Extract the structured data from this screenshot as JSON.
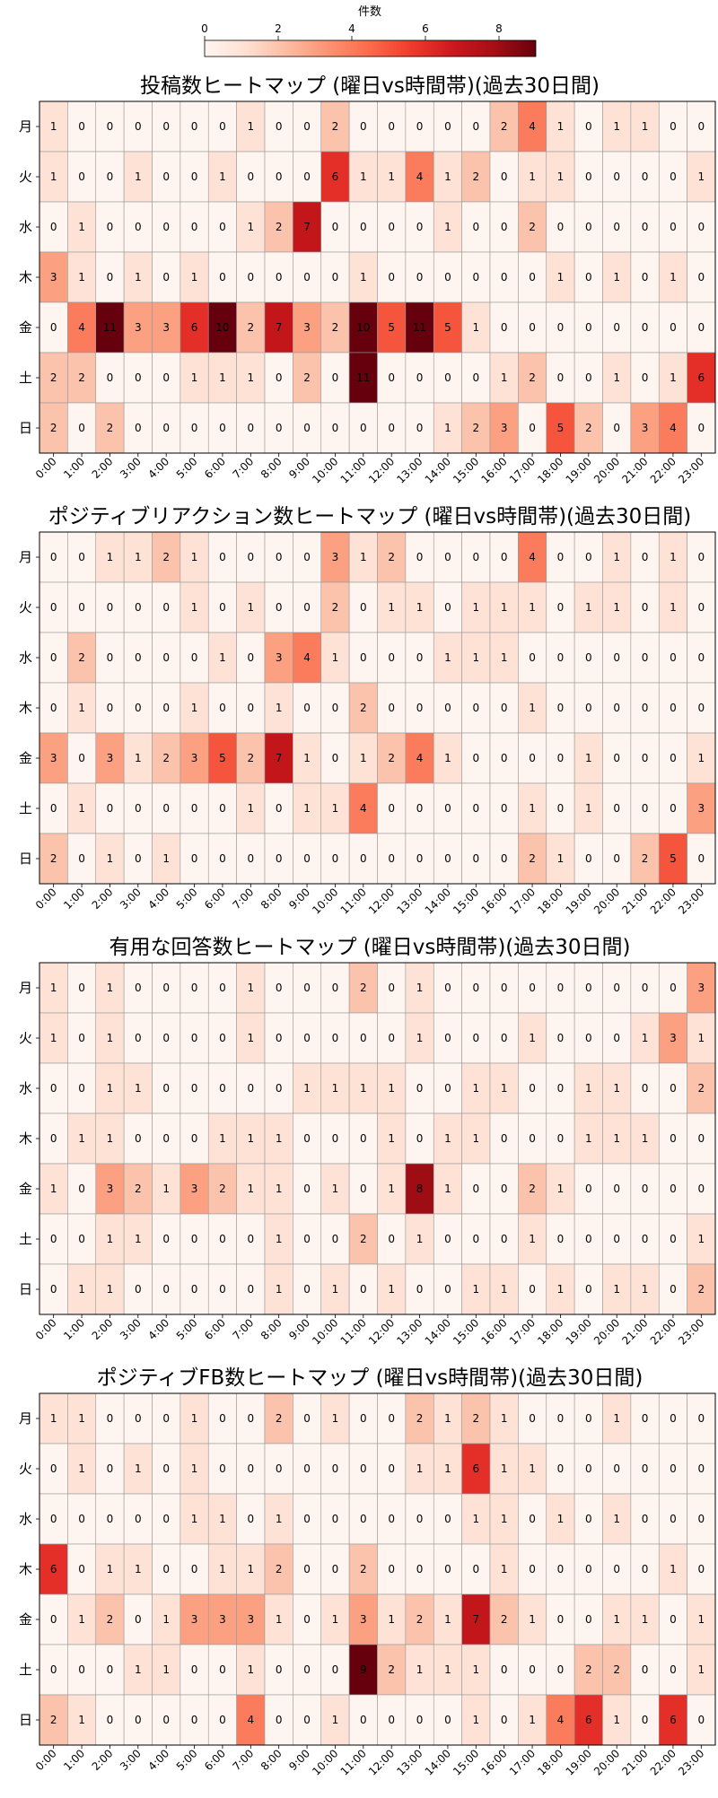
{
  "colorbar": {
    "label": "件数",
    "ticks": [
      0,
      2,
      4,
      6,
      8
    ],
    "range": [
      0,
      9
    ],
    "colormap": "Reds",
    "orientation": "horizontal",
    "placement": "top"
  },
  "chart_data": [
    {
      "type": "heatmap",
      "title": "投稿数ヒートマップ (曜日vs時間帯)(過去30日間)",
      "rows": [
        "月",
        "火",
        "水",
        "木",
        "金",
        "土",
        "日"
      ],
      "columns": [
        "0:00",
        "1:00",
        "2:00",
        "3:00",
        "4:00",
        "5:00",
        "6:00",
        "7:00",
        "8:00",
        "9:00",
        "10:00",
        "11:00",
        "12:00",
        "13:00",
        "14:00",
        "15:00",
        "16:00",
        "17:00",
        "18:00",
        "19:00",
        "20:00",
        "21:00",
        "22:00",
        "23:00"
      ],
      "values": [
        [
          1,
          0,
          0,
          0,
          0,
          0,
          0,
          1,
          0,
          0,
          2,
          0,
          0,
          0,
          0,
          0,
          2,
          4,
          1,
          0,
          1,
          1,
          0,
          0
        ],
        [
          1,
          0,
          0,
          1,
          0,
          0,
          1,
          0,
          0,
          0,
          6,
          1,
          1,
          4,
          1,
          2,
          0,
          1,
          1,
          0,
          0,
          0,
          0,
          1
        ],
        [
          0,
          1,
          0,
          0,
          0,
          0,
          0,
          1,
          2,
          7,
          0,
          0,
          0,
          0,
          1,
          0,
          0,
          2,
          0,
          0,
          0,
          0,
          0,
          0
        ],
        [
          3,
          1,
          0,
          1,
          0,
          1,
          0,
          0,
          0,
          0,
          0,
          1,
          0,
          0,
          0,
          0,
          0,
          0,
          1,
          0,
          1,
          0,
          1,
          0
        ],
        [
          0,
          4,
          11,
          3,
          3,
          6,
          10,
          2,
          7,
          3,
          2,
          10,
          5,
          11,
          5,
          1,
          0,
          0,
          0,
          0,
          0,
          0,
          0,
          0
        ],
        [
          2,
          2,
          0,
          0,
          0,
          1,
          1,
          1,
          0,
          2,
          0,
          11,
          0,
          0,
          0,
          0,
          1,
          2,
          0,
          0,
          1,
          0,
          1,
          6
        ],
        [
          2,
          0,
          2,
          0,
          0,
          0,
          0,
          0,
          0,
          0,
          0,
          0,
          0,
          0,
          1,
          2,
          3,
          0,
          5,
          2,
          0,
          3,
          4,
          0
        ]
      ]
    },
    {
      "type": "heatmap",
      "title": "ポジティブリアクション数ヒートマップ (曜日vs時間帯)(過去30日間)",
      "rows": [
        "月",
        "火",
        "水",
        "木",
        "金",
        "土",
        "日"
      ],
      "columns": [
        "0:00",
        "1:00",
        "2:00",
        "3:00",
        "4:00",
        "5:00",
        "6:00",
        "7:00",
        "8:00",
        "9:00",
        "10:00",
        "11:00",
        "12:00",
        "13:00",
        "14:00",
        "15:00",
        "16:00",
        "17:00",
        "18:00",
        "19:00",
        "20:00",
        "21:00",
        "22:00",
        "23:00"
      ],
      "values": [
        [
          0,
          0,
          1,
          1,
          2,
          1,
          0,
          0,
          0,
          0,
          3,
          1,
          2,
          0,
          0,
          0,
          0,
          4,
          0,
          0,
          1,
          0,
          1,
          0
        ],
        [
          0,
          0,
          0,
          0,
          0,
          1,
          0,
          1,
          0,
          0,
          2,
          0,
          1,
          1,
          0,
          1,
          1,
          1,
          0,
          1,
          1,
          0,
          1,
          0
        ],
        [
          0,
          2,
          0,
          0,
          0,
          0,
          1,
          0,
          3,
          4,
          1,
          0,
          0,
          0,
          1,
          1,
          1,
          0,
          0,
          0,
          0,
          0,
          0,
          0
        ],
        [
          0,
          1,
          0,
          0,
          0,
          1,
          0,
          0,
          1,
          0,
          0,
          2,
          0,
          0,
          0,
          0,
          0,
          1,
          0,
          0,
          0,
          0,
          0,
          0
        ],
        [
          3,
          0,
          3,
          1,
          2,
          3,
          5,
          2,
          7,
          1,
          0,
          1,
          2,
          4,
          1,
          0,
          0,
          0,
          0,
          1,
          0,
          0,
          0,
          1
        ],
        [
          0,
          1,
          0,
          0,
          0,
          0,
          0,
          1,
          0,
          1,
          1,
          4,
          0,
          0,
          0,
          0,
          0,
          1,
          0,
          1,
          0,
          0,
          0,
          3
        ],
        [
          2,
          0,
          1,
          0,
          1,
          0,
          0,
          0,
          0,
          0,
          0,
          0,
          0,
          0,
          0,
          0,
          0,
          2,
          1,
          0,
          0,
          2,
          5,
          0
        ]
      ]
    },
    {
      "type": "heatmap",
      "title": "有用な回答数ヒートマップ (曜日vs時間帯)(過去30日間)",
      "rows": [
        "月",
        "火",
        "水",
        "木",
        "金",
        "土",
        "日"
      ],
      "columns": [
        "0:00",
        "1:00",
        "2:00",
        "3:00",
        "4:00",
        "5:00",
        "6:00",
        "7:00",
        "8:00",
        "9:00",
        "10:00",
        "11:00",
        "12:00",
        "13:00",
        "14:00",
        "15:00",
        "16:00",
        "17:00",
        "18:00",
        "19:00",
        "20:00",
        "21:00",
        "22:00",
        "23:00"
      ],
      "values": [
        [
          1,
          0,
          1,
          0,
          0,
          0,
          0,
          1,
          0,
          0,
          0,
          2,
          0,
          1,
          0,
          0,
          0,
          0,
          0,
          0,
          0,
          0,
          0,
          3
        ],
        [
          1,
          0,
          1,
          0,
          0,
          0,
          0,
          1,
          0,
          0,
          0,
          0,
          0,
          1,
          0,
          0,
          0,
          1,
          0,
          0,
          0,
          1,
          3,
          1
        ],
        [
          0,
          0,
          1,
          1,
          0,
          0,
          0,
          0,
          0,
          1,
          1,
          1,
          1,
          0,
          0,
          1,
          1,
          0,
          0,
          1,
          1,
          0,
          0,
          2
        ],
        [
          0,
          1,
          1,
          0,
          0,
          0,
          1,
          1,
          1,
          0,
          0,
          0,
          1,
          0,
          1,
          1,
          0,
          0,
          0,
          1,
          1,
          1,
          0,
          0
        ],
        [
          1,
          0,
          3,
          2,
          1,
          3,
          2,
          1,
          1,
          0,
          1,
          0,
          1,
          8,
          1,
          0,
          0,
          2,
          1,
          0,
          0,
          0,
          0,
          0
        ],
        [
          0,
          0,
          1,
          1,
          0,
          0,
          0,
          0,
          1,
          0,
          0,
          2,
          0,
          1,
          0,
          0,
          0,
          1,
          0,
          0,
          0,
          0,
          0,
          1
        ],
        [
          0,
          1,
          1,
          0,
          0,
          0,
          0,
          0,
          1,
          0,
          1,
          0,
          1,
          0,
          0,
          1,
          1,
          0,
          1,
          0,
          1,
          1,
          0,
          2
        ]
      ]
    },
    {
      "type": "heatmap",
      "title": "ポジティブFB数ヒートマップ (曜日vs時間帯)(過去30日間)",
      "rows": [
        "月",
        "火",
        "水",
        "木",
        "金",
        "土",
        "日"
      ],
      "columns": [
        "0:00",
        "1:00",
        "2:00",
        "3:00",
        "4:00",
        "5:00",
        "6:00",
        "7:00",
        "8:00",
        "9:00",
        "10:00",
        "11:00",
        "12:00",
        "13:00",
        "14:00",
        "15:00",
        "16:00",
        "17:00",
        "18:00",
        "19:00",
        "20:00",
        "21:00",
        "22:00",
        "23:00"
      ],
      "values": [
        [
          1,
          1,
          0,
          0,
          0,
          1,
          0,
          0,
          2,
          0,
          1,
          0,
          0,
          2,
          1,
          2,
          1,
          0,
          0,
          0,
          1,
          0,
          0,
          0
        ],
        [
          0,
          1,
          0,
          1,
          0,
          1,
          0,
          0,
          0,
          0,
          0,
          0,
          0,
          1,
          1,
          6,
          1,
          1,
          0,
          0,
          0,
          0,
          0,
          0
        ],
        [
          0,
          0,
          0,
          0,
          0,
          1,
          1,
          0,
          1,
          0,
          0,
          0,
          0,
          0,
          0,
          1,
          1,
          0,
          1,
          0,
          1,
          0,
          0,
          0
        ],
        [
          6,
          0,
          1,
          1,
          0,
          0,
          1,
          1,
          2,
          0,
          0,
          2,
          0,
          0,
          0,
          0,
          1,
          0,
          0,
          0,
          0,
          0,
          1,
          0
        ],
        [
          0,
          1,
          2,
          0,
          1,
          3,
          3,
          3,
          1,
          0,
          1,
          3,
          1,
          2,
          1,
          7,
          2,
          1,
          0,
          0,
          1,
          1,
          0,
          1
        ],
        [
          0,
          0,
          0,
          1,
          1,
          0,
          0,
          1,
          0,
          0,
          0,
          9,
          2,
          1,
          1,
          1,
          0,
          0,
          0,
          2,
          2,
          0,
          0,
          1
        ],
        [
          2,
          1,
          0,
          0,
          0,
          0,
          0,
          4,
          0,
          0,
          1,
          0,
          0,
          0,
          0,
          1,
          0,
          1,
          4,
          6,
          1,
          0,
          6,
          0
        ]
      ]
    }
  ]
}
